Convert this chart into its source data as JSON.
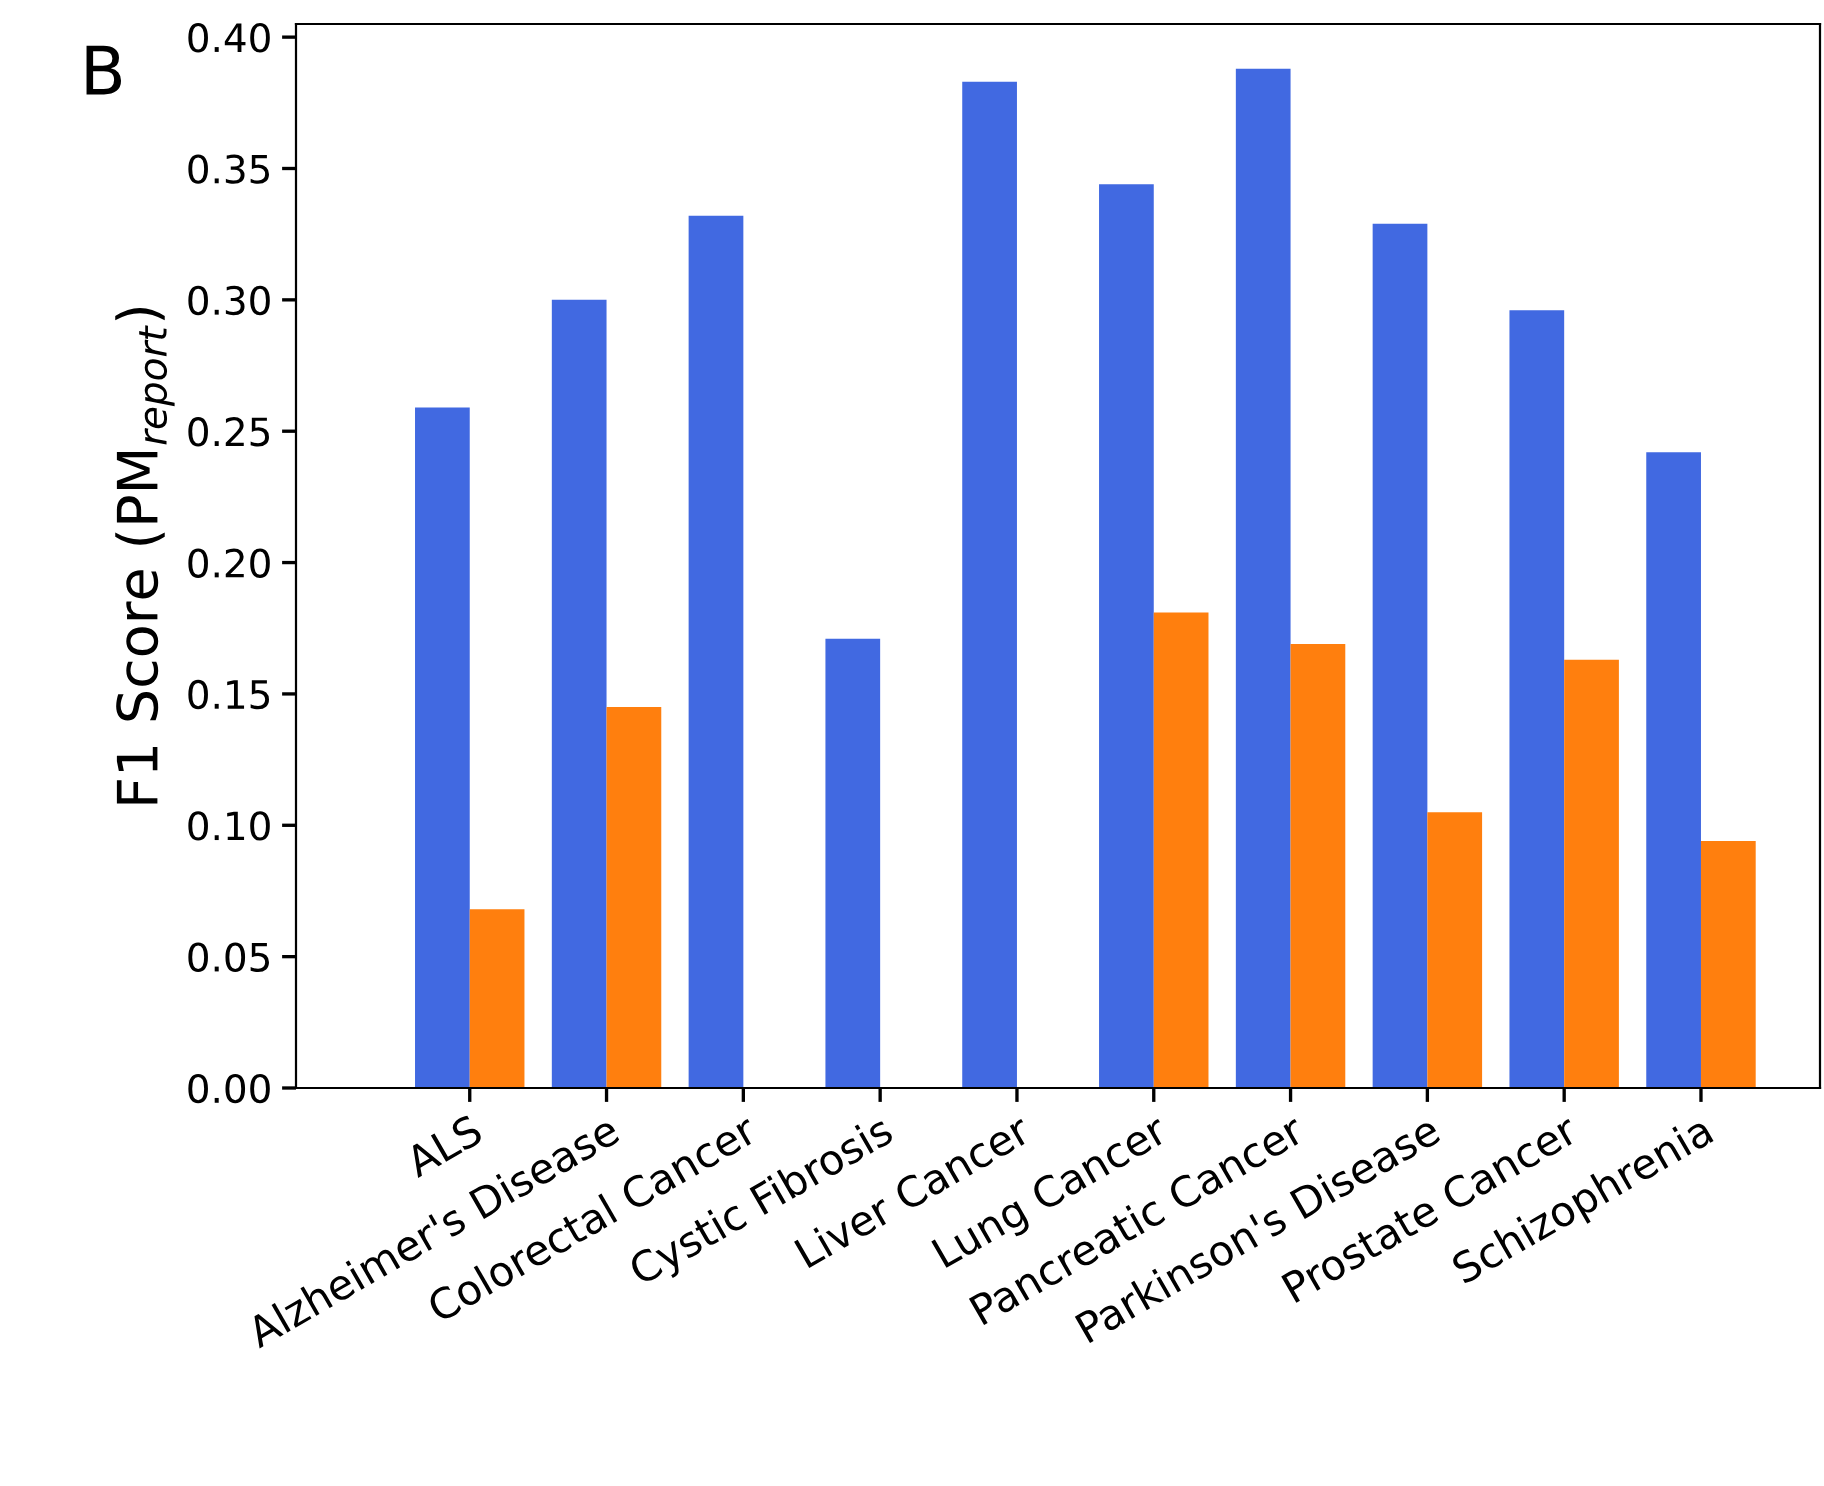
{
  "chart_data": {
    "type": "bar",
    "ylabel": "F1 Score (PM$_{report}$)",
    "annotations": [
      "B"
    ],
    "categories": [
      "ALS",
      "Alzheimer's Disease",
      "Colorectal Cancer",
      "Cystic Fibrosis",
      "Liver Cancer",
      "Lung Cancer",
      "Pancreatic Cancer",
      "Parkinson's Disease",
      "Prostate Cancer",
      "Schizophrenia"
    ],
    "series": [
      {
        "color": "#4169e1",
        "values": [
          0.259,
          0.3,
          0.332,
          0.171,
          0.383,
          0.344,
          0.388,
          0.329,
          0.296,
          0.242
        ]
      },
      {
        "color": "#ff7f0e",
        "values": [
          0.068,
          0.145,
          0,
          0,
          0,
          0.181,
          0.169,
          0.105,
          0.163,
          0.094
        ]
      }
    ],
    "ylim": [
      0,
      0.405
    ],
    "yticks": [
      {
        "value": 0,
        "label": "0.00"
      },
      {
        "value": 0.05,
        "label": "0.05"
      },
      {
        "value": 0.1,
        "label": "0.10"
      },
      {
        "value": 0.15,
        "label": "0.15"
      },
      {
        "value": 0.2,
        "label": "0.20"
      },
      {
        "value": 0.25,
        "label": "0.25"
      },
      {
        "value": 0.3,
        "label": "0.30"
      },
      {
        "value": 0.35,
        "label": "0.35"
      },
      {
        "value": 0.4,
        "label": "0.40"
      }
    ],
    "grid": false
  }
}
